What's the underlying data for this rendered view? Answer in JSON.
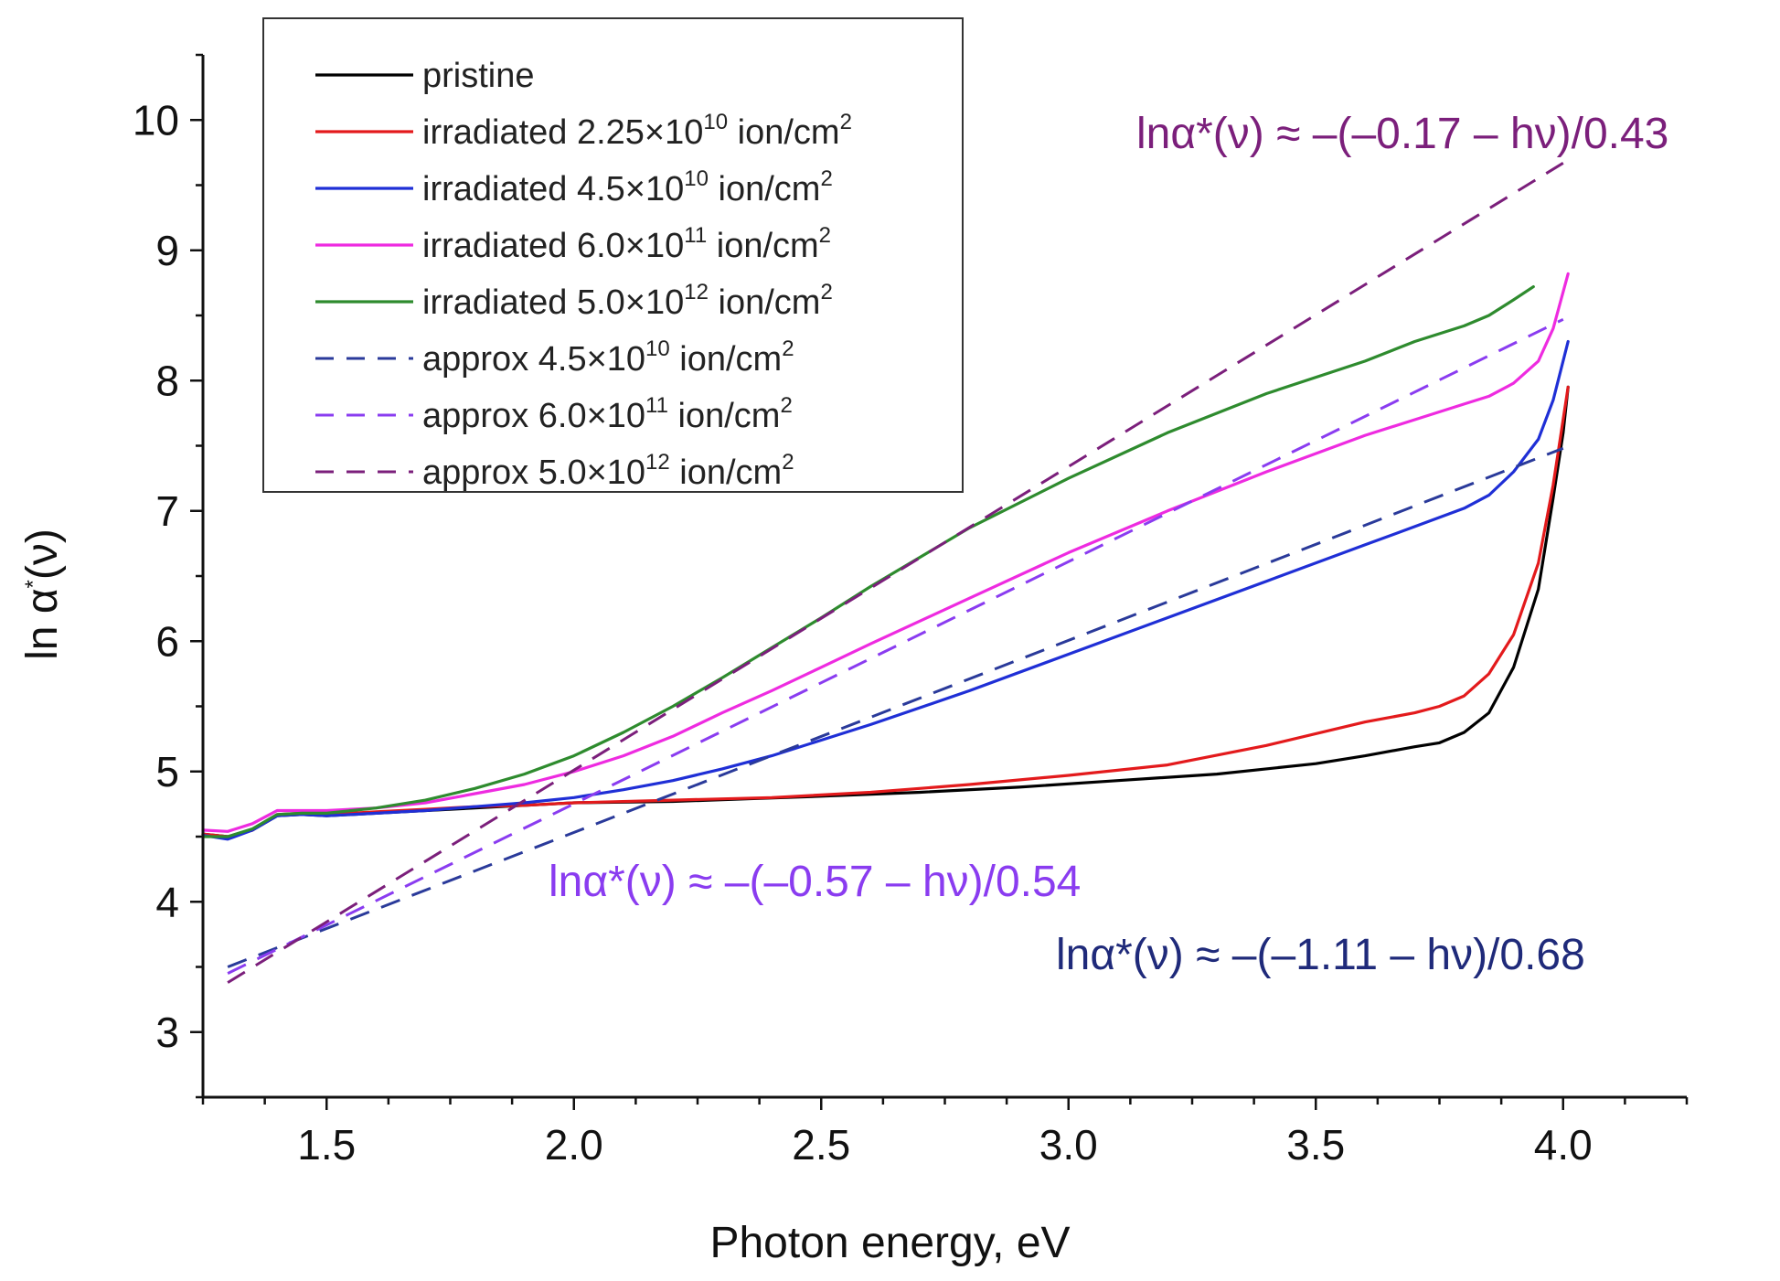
{
  "chart_data": {
    "type": "line",
    "xlabel": "Photon energy, eV",
    "ylabel": "ln α*(ν)",
    "ylabel_parts": {
      "base": "ln α",
      "sup": "*",
      "rest": "(ν)"
    },
    "xlim": [
      1.25,
      4.25
    ],
    "ylim": [
      2.5,
      10.5
    ],
    "xticks": [
      1.5,
      2.0,
      2.5,
      3.0,
      3.5,
      4.0
    ],
    "xtick_labels": [
      "1.5",
      "2.0",
      "2.5",
      "3.0",
      "3.5",
      "4.0"
    ],
    "yticks": [
      3,
      4,
      5,
      6,
      7,
      8,
      9,
      10
    ],
    "ytick_labels": [
      "3",
      "4",
      "5",
      "6",
      "7",
      "8",
      "9",
      "10"
    ],
    "legend_position": "top-left",
    "series": [
      {
        "name": "pristine",
        "label": {
          "text": "pristine",
          "sup": "",
          "tail": ""
        },
        "color": "#000000",
        "style": "solid",
        "points": [
          [
            1.25,
            4.52
          ],
          [
            1.3,
            4.5
          ],
          [
            1.35,
            4.55
          ],
          [
            1.4,
            4.66
          ],
          [
            1.45,
            4.67
          ],
          [
            1.5,
            4.66
          ],
          [
            1.6,
            4.68
          ],
          [
            1.7,
            4.7
          ],
          [
            1.8,
            4.72
          ],
          [
            1.9,
            4.74
          ],
          [
            2.0,
            4.76
          ],
          [
            2.2,
            4.77
          ],
          [
            2.35,
            4.79
          ],
          [
            2.5,
            4.81
          ],
          [
            2.7,
            4.84
          ],
          [
            2.9,
            4.88
          ],
          [
            3.1,
            4.93
          ],
          [
            3.3,
            4.98
          ],
          [
            3.5,
            5.06
          ],
          [
            3.6,
            5.12
          ],
          [
            3.7,
            5.19
          ],
          [
            3.75,
            5.22
          ],
          [
            3.8,
            5.3
          ],
          [
            3.85,
            5.45
          ],
          [
            3.9,
            5.8
          ],
          [
            3.95,
            6.4
          ],
          [
            3.98,
            7.1
          ],
          [
            4.0,
            7.6
          ],
          [
            4.01,
            7.95
          ]
        ]
      },
      {
        "name": "irradiated 2.25e10",
        "label": {
          "text": "irradiated  2.25×10",
          "sup": "10",
          "tail": " ion/cm",
          "sup2": "2"
        },
        "color": "#e31a1c",
        "style": "solid",
        "points": [
          [
            1.25,
            4.52
          ],
          [
            1.3,
            4.5
          ],
          [
            1.35,
            4.55
          ],
          [
            1.4,
            4.67
          ],
          [
            1.45,
            4.68
          ],
          [
            1.5,
            4.67
          ],
          [
            1.6,
            4.69
          ],
          [
            1.7,
            4.71
          ],
          [
            1.8,
            4.73
          ],
          [
            1.9,
            4.74
          ],
          [
            2.0,
            4.76
          ],
          [
            2.2,
            4.78
          ],
          [
            2.4,
            4.8
          ],
          [
            2.6,
            4.84
          ],
          [
            2.8,
            4.9
          ],
          [
            3.0,
            4.97
          ],
          [
            3.2,
            5.05
          ],
          [
            3.4,
            5.2
          ],
          [
            3.6,
            5.38
          ],
          [
            3.7,
            5.45
          ],
          [
            3.75,
            5.5
          ],
          [
            3.8,
            5.58
          ],
          [
            3.85,
            5.75
          ],
          [
            3.9,
            6.05
          ],
          [
            3.95,
            6.6
          ],
          [
            3.98,
            7.2
          ],
          [
            4.01,
            7.95
          ]
        ]
      },
      {
        "name": "irradiated 4.5e10",
        "label": {
          "text": "irradiated 4.5×10",
          "sup": "10",
          "tail": " ion/cm",
          "sup2": "2"
        },
        "color": "#1f2fd6",
        "style": "solid",
        "points": [
          [
            1.25,
            4.51
          ],
          [
            1.3,
            4.48
          ],
          [
            1.35,
            4.55
          ],
          [
            1.4,
            4.66
          ],
          [
            1.45,
            4.67
          ],
          [
            1.5,
            4.66
          ],
          [
            1.6,
            4.68
          ],
          [
            1.7,
            4.7
          ],
          [
            1.8,
            4.73
          ],
          [
            1.9,
            4.76
          ],
          [
            2.0,
            4.8
          ],
          [
            2.1,
            4.86
          ],
          [
            2.2,
            4.93
          ],
          [
            2.3,
            5.02
          ],
          [
            2.4,
            5.12
          ],
          [
            2.5,
            5.24
          ],
          [
            2.6,
            5.36
          ],
          [
            2.8,
            5.62
          ],
          [
            3.0,
            5.9
          ],
          [
            3.2,
            6.18
          ],
          [
            3.4,
            6.46
          ],
          [
            3.6,
            6.74
          ],
          [
            3.7,
            6.88
          ],
          [
            3.8,
            7.02
          ],
          [
            3.85,
            7.12
          ],
          [
            3.9,
            7.3
          ],
          [
            3.95,
            7.55
          ],
          [
            3.98,
            7.85
          ],
          [
            4.01,
            8.3
          ]
        ]
      },
      {
        "name": "irradiated 6.0e11",
        "label": {
          "text": "irradiated  6.0×10",
          "sup": "11",
          "tail": " ion/cm",
          "sup2": "2"
        },
        "color": "#ee2be0",
        "style": "solid",
        "points": [
          [
            1.25,
            4.55
          ],
          [
            1.3,
            4.54
          ],
          [
            1.35,
            4.6
          ],
          [
            1.4,
            4.7
          ],
          [
            1.45,
            4.7
          ],
          [
            1.5,
            4.7
          ],
          [
            1.6,
            4.72
          ],
          [
            1.7,
            4.76
          ],
          [
            1.8,
            4.83
          ],
          [
            1.9,
            4.9
          ],
          [
            2.0,
            5.0
          ],
          [
            2.1,
            5.12
          ],
          [
            2.2,
            5.27
          ],
          [
            2.3,
            5.45
          ],
          [
            2.4,
            5.62
          ],
          [
            2.5,
            5.8
          ],
          [
            2.6,
            5.98
          ],
          [
            2.8,
            6.33
          ],
          [
            3.0,
            6.68
          ],
          [
            3.2,
            7.0
          ],
          [
            3.4,
            7.3
          ],
          [
            3.6,
            7.58
          ],
          [
            3.7,
            7.7
          ],
          [
            3.8,
            7.82
          ],
          [
            3.85,
            7.88
          ],
          [
            3.9,
            7.98
          ],
          [
            3.95,
            8.15
          ],
          [
            3.98,
            8.4
          ],
          [
            4.01,
            8.82
          ]
        ]
      },
      {
        "name": "irradiated 5.0e12",
        "label": {
          "text": "irradiated 5.0×10",
          "sup": "12",
          "tail": " ion/cm",
          "sup2": "2"
        },
        "color": "#2e8b2e",
        "style": "solid",
        "points": [
          [
            1.25,
            4.5
          ],
          [
            1.3,
            4.5
          ],
          [
            1.35,
            4.56
          ],
          [
            1.4,
            4.67
          ],
          [
            1.45,
            4.68
          ],
          [
            1.5,
            4.68
          ],
          [
            1.6,
            4.72
          ],
          [
            1.7,
            4.78
          ],
          [
            1.8,
            4.87
          ],
          [
            1.9,
            4.98
          ],
          [
            2.0,
            5.12
          ],
          [
            2.1,
            5.3
          ],
          [
            2.2,
            5.5
          ],
          [
            2.3,
            5.72
          ],
          [
            2.4,
            5.95
          ],
          [
            2.5,
            6.18
          ],
          [
            2.6,
            6.42
          ],
          [
            2.8,
            6.87
          ],
          [
            3.0,
            7.25
          ],
          [
            3.2,
            7.6
          ],
          [
            3.4,
            7.9
          ],
          [
            3.6,
            8.15
          ],
          [
            3.7,
            8.3
          ],
          [
            3.8,
            8.42
          ],
          [
            3.85,
            8.5
          ],
          [
            3.9,
            8.62
          ],
          [
            3.94,
            8.72
          ]
        ]
      },
      {
        "name": "approx 4.5e10",
        "label": {
          "text": "approx  4.5×10",
          "sup": "10",
          "tail": " ion/cm",
          "sup2": "2"
        },
        "color": "#2a3a9a",
        "style": "dashed",
        "points": [
          [
            1.3,
            3.5
          ],
          [
            4.0,
            7.48
          ]
        ]
      },
      {
        "name": "approx 6.0e11",
        "label": {
          "text": "approx 6.0×10",
          "sup": "11",
          "tail": " ion/cm",
          "sup2": "2"
        },
        "color": "#8a3cf0",
        "style": "dashed",
        "points": [
          [
            1.3,
            3.45
          ],
          [
            4.0,
            8.47
          ]
        ]
      },
      {
        "name": "approx 5.0e12",
        "label": {
          "text": "approx 5.0×10",
          "sup": "12",
          "tail": " ion/cm",
          "sup2": "2"
        },
        "color": "#7b1f7b",
        "style": "dashed",
        "points": [
          [
            1.3,
            3.38
          ],
          [
            4.0,
            9.67
          ]
        ]
      }
    ],
    "annotations": [
      {
        "text": "lnα*(ν) ≈ –(–0.17 – hν)/0.43",
        "color": "#7b1f7b"
      },
      {
        "text": "lnα*(ν) ≈ –(–0.57 – hν)/0.54",
        "color": "#8a3cf0"
      },
      {
        "text": "lnα*(ν) ≈ –(–1.11 – hν)/0.68",
        "color": "#1f2a7a"
      }
    ]
  }
}
